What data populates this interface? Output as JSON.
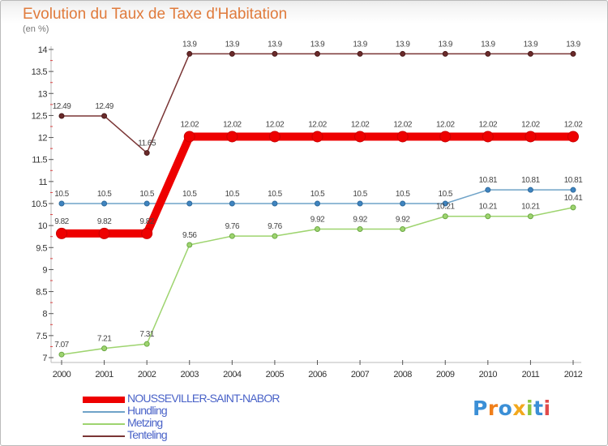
{
  "chart_data": {
    "type": "line",
    "title": "Evolution du Taux de Taxe d'Habitation",
    "subtitle": "(en %)",
    "xlabel": "",
    "ylabel": "",
    "x": [
      "2000",
      "2001",
      "2002",
      "2003",
      "2004",
      "2005",
      "2006",
      "2007",
      "2008",
      "2009",
      "2010",
      "2011",
      "2012"
    ],
    "ylim": [
      7,
      14
    ],
    "yticks": [
      "7",
      "7.5",
      "8",
      "8.5",
      "9",
      "9.5",
      "10",
      "10.5",
      "11",
      "11.5",
      "12",
      "12.5",
      "13",
      "13.5",
      "14"
    ],
    "grid": false,
    "legend_position": "bottom-left",
    "series": [
      {
        "name": "NOUSSEVILLER-SAINT-NABOR",
        "color": "#ee0000",
        "values": [
          9.82,
          9.82,
          9.82,
          12.02,
          12.02,
          12.02,
          12.02,
          12.02,
          12.02,
          12.02,
          12.02,
          12.02,
          12.02
        ],
        "labels": [
          "9.82",
          "9.82",
          "9.82",
          "12.02",
          "12.02",
          "12.02",
          "12.02",
          "12.02",
          "12.02",
          "12.02",
          "12.02",
          "12.02",
          "12.02"
        ]
      },
      {
        "name": "Hundling",
        "color": "#6fa3c8",
        "values": [
          10.5,
          10.5,
          10.5,
          10.5,
          10.5,
          10.5,
          10.5,
          10.5,
          10.5,
          10.5,
          10.81,
          10.81,
          10.81
        ],
        "labels": [
          "10.5",
          "10.5",
          "10.5",
          "10.5",
          "10.5",
          "10.5",
          "10.5",
          "10.5",
          "10.5",
          "10.5",
          "10.81",
          "10.81",
          "10.81"
        ]
      },
      {
        "name": "Metzing",
        "color": "#9ed46f",
        "values": [
          7.07,
          7.21,
          7.31,
          9.56,
          9.76,
          9.76,
          9.92,
          9.92,
          9.92,
          10.21,
          10.21,
          10.21,
          10.41
        ],
        "labels": [
          "7.07",
          "7.21",
          "7.31",
          "9.56",
          "9.76",
          "9.76",
          "9.92",
          "9.92",
          "9.92",
          "10.21",
          "10.21",
          "10.21",
          "10.41"
        ]
      },
      {
        "name": "Tenteling",
        "color": "#7a3535",
        "values": [
          12.49,
          12.49,
          11.65,
          13.9,
          13.9,
          13.9,
          13.9,
          13.9,
          13.9,
          13.9,
          13.9,
          13.9,
          13.9
        ],
        "labels": [
          "12.49",
          "12.49",
          "11.65",
          "13.9",
          "13.9",
          "13.9",
          "13.9",
          "13.9",
          "13.9",
          "13.9",
          "13.9",
          "13.9",
          "13.9"
        ]
      }
    ]
  },
  "logo": {
    "letters": [
      "P",
      "r",
      "o",
      "x",
      "i",
      "t",
      "i"
    ],
    "colors": [
      "#3b8fd6",
      "#f07f1b",
      "#3b8fd6",
      "#f2a81d",
      "#8cc63f",
      "#3b8fd6",
      "#e14b4b"
    ]
  }
}
